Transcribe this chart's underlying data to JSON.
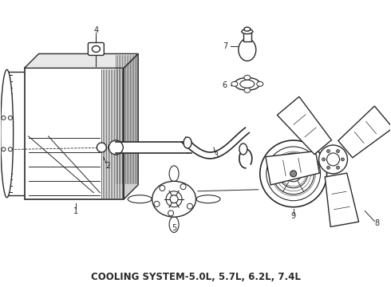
{
  "title": "COOLING SYSTEM—5.0L, 5.7L, 6.2L, 7.4L",
  "title_text": "COOLING SYSTEM-5.0L, 5.7L, 6.2L, 7.4L",
  "bg_color": "#ffffff",
  "line_color": "#2a2a2a",
  "title_fontsize": 8.5,
  "fig_width": 4.9,
  "fig_height": 3.6,
  "dpi": 100
}
